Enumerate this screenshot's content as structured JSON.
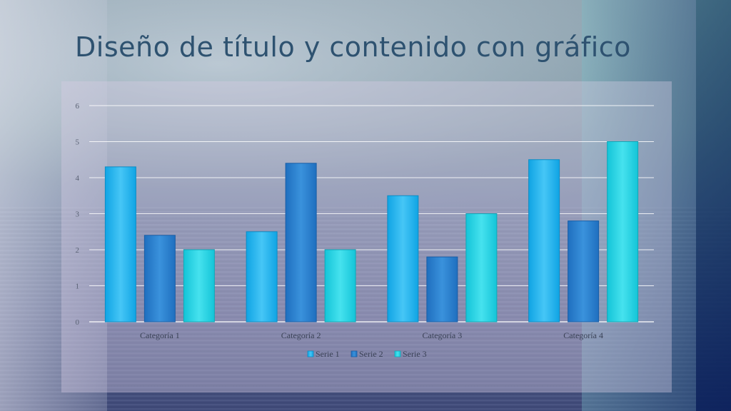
{
  "slide": {
    "title": "Diseño de título y contenido con gráfico"
  },
  "colors": {
    "serie1": "#1fb4ee",
    "serie2": "#2b82cf",
    "serie3": "#22d4e2",
    "gridline": "#ffffff"
  },
  "chart_data": {
    "type": "bar",
    "categories": [
      "Categoría 1",
      "Categoría 2",
      "Categoría 3",
      "Categoría 4"
    ],
    "series": [
      {
        "name": "Serie 1",
        "values": [
          4.3,
          2.5,
          3.5,
          4.5
        ]
      },
      {
        "name": "Serie 2",
        "values": [
          2.4,
          4.4,
          1.8,
          2.8
        ]
      },
      {
        "name": "Serie 3",
        "values": [
          2,
          2,
          3,
          5
        ]
      }
    ],
    "yticks": [
      "0",
      "1",
      "2",
      "3",
      "4",
      "5",
      "6"
    ],
    "ylim": [
      0,
      6
    ],
    "grid": true,
    "legend_position": "bottom",
    "title": "",
    "xlabel": "",
    "ylabel": ""
  }
}
